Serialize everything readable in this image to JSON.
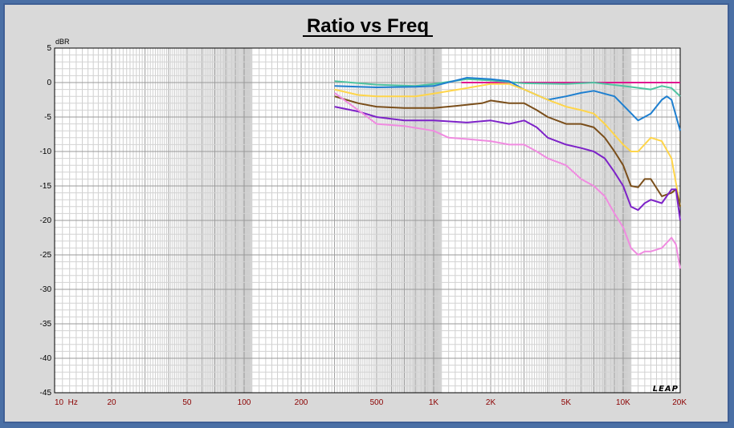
{
  "chart_data": {
    "type": "line",
    "title": "Ratio vs Freq",
    "ylabel": "dBR",
    "brand": "LEAP",
    "x_scale": "log",
    "xlim": [
      10,
      20000
    ],
    "ylim": [
      -45,
      5
    ],
    "grid": true,
    "y_ticks": [
      5,
      0,
      -5,
      -10,
      -15,
      -20,
      -25,
      -30,
      -35,
      -40,
      -45
    ],
    "x_ticks": [
      {
        "value": 10,
        "label": "10  Hz"
      },
      {
        "value": 20,
        "label": "20"
      },
      {
        "value": 50,
        "label": "50"
      },
      {
        "value": 100,
        "label": "100"
      },
      {
        "value": 200,
        "label": "200"
      },
      {
        "value": 500,
        "label": "500"
      },
      {
        "value": 1000,
        "label": "1K"
      },
      {
        "value": 2000,
        "label": "2K"
      },
      {
        "value": 5000,
        "label": "5K"
      },
      {
        "value": 10000,
        "label": "10K"
      },
      {
        "value": 20000,
        "label": "20K"
      }
    ],
    "series": [
      {
        "color": "#e0158f",
        "points": [
          [
            1400,
            0
          ],
          [
            2000,
            0
          ],
          [
            5000,
            0
          ],
          [
            10000,
            0
          ],
          [
            20000,
            0
          ]
        ]
      },
      {
        "color": "#4fc3a1",
        "points": [
          [
            300,
            0.2
          ],
          [
            500,
            -0.3
          ],
          [
            800,
            -0.5
          ],
          [
            1000,
            -0.2
          ],
          [
            1500,
            0.5
          ],
          [
            2000,
            0.3
          ],
          [
            3000,
            -0.1
          ],
          [
            5000,
            -0.2
          ],
          [
            7000,
            0
          ],
          [
            10000,
            -0.5
          ],
          [
            14000,
            -1
          ],
          [
            16000,
            -0.5
          ],
          [
            18000,
            -0.8
          ],
          [
            20000,
            -2
          ]
        ]
      },
      {
        "color": "#1e7fd0",
        "points": [
          [
            300,
            -0.5
          ],
          [
            500,
            -0.7
          ],
          [
            800,
            -0.6
          ],
          [
            1000,
            -0.5
          ],
          [
            1500,
            0.7
          ],
          [
            2000,
            0.5
          ],
          [
            2500,
            0.2
          ],
          [
            3000,
            -1
          ],
          [
            4000,
            -2.5
          ],
          [
            5000,
            -2
          ],
          [
            6000,
            -1.5
          ],
          [
            7000,
            -1.2
          ],
          [
            9000,
            -2
          ],
          [
            12000,
            -5.5
          ],
          [
            14000,
            -4.5
          ],
          [
            16000,
            -2.5
          ],
          [
            17000,
            -2
          ],
          [
            18000,
            -2.5
          ],
          [
            20000,
            -7
          ]
        ]
      },
      {
        "color": "#ffd54a",
        "points": [
          [
            300,
            -1
          ],
          [
            400,
            -1.8
          ],
          [
            500,
            -2
          ],
          [
            800,
            -2
          ],
          [
            1000,
            -1.6
          ],
          [
            1500,
            -0.8
          ],
          [
            2000,
            -0.2
          ],
          [
            2500,
            -0.2
          ],
          [
            3000,
            -1
          ],
          [
            4000,
            -2.5
          ],
          [
            5000,
            -3.5
          ],
          [
            6000,
            -4
          ],
          [
            7000,
            -4.5
          ],
          [
            8000,
            -6
          ],
          [
            10000,
            -9
          ],
          [
            11000,
            -10
          ],
          [
            12000,
            -10
          ],
          [
            14000,
            -8
          ],
          [
            16000,
            -8.5
          ],
          [
            18000,
            -11
          ],
          [
            20000,
            -18
          ]
        ]
      },
      {
        "color": "#7a4e1a",
        "points": [
          [
            300,
            -2
          ],
          [
            400,
            -3
          ],
          [
            500,
            -3.5
          ],
          [
            700,
            -3.7
          ],
          [
            1000,
            -3.7
          ],
          [
            1300,
            -3.4
          ],
          [
            1800,
            -3
          ],
          [
            2000,
            -2.6
          ],
          [
            2500,
            -3
          ],
          [
            3000,
            -3
          ],
          [
            3500,
            -4
          ],
          [
            4000,
            -5
          ],
          [
            5000,
            -6
          ],
          [
            6000,
            -6
          ],
          [
            7000,
            -6.5
          ],
          [
            8000,
            -8
          ],
          [
            9000,
            -10
          ],
          [
            10000,
            -12
          ],
          [
            11000,
            -15
          ],
          [
            12000,
            -15.2
          ],
          [
            13000,
            -14
          ],
          [
            14000,
            -14
          ],
          [
            16000,
            -16.5
          ],
          [
            18000,
            -16
          ],
          [
            19000,
            -15.5
          ],
          [
            20000,
            -18
          ]
        ]
      },
      {
        "color": "#7d22c8",
        "points": [
          [
            300,
            -3.5
          ],
          [
            400,
            -4.2
          ],
          [
            500,
            -5
          ],
          [
            700,
            -5.5
          ],
          [
            1000,
            -5.5
          ],
          [
            1500,
            -5.8
          ],
          [
            2000,
            -5.5
          ],
          [
            2500,
            -6
          ],
          [
            3000,
            -5.5
          ],
          [
            3500,
            -6.5
          ],
          [
            4000,
            -8
          ],
          [
            5000,
            -9
          ],
          [
            6000,
            -9.5
          ],
          [
            7000,
            -10
          ],
          [
            8000,
            -11
          ],
          [
            9000,
            -13
          ],
          [
            10000,
            -15
          ],
          [
            11000,
            -18
          ],
          [
            12000,
            -18.5
          ],
          [
            13000,
            -17.5
          ],
          [
            14000,
            -17
          ],
          [
            16000,
            -17.5
          ],
          [
            18000,
            -15.5
          ],
          [
            19000,
            -15.5
          ],
          [
            20000,
            -20
          ]
        ]
      },
      {
        "color": "#f08be0",
        "points": [
          [
            300,
            -1.5
          ],
          [
            400,
            -4
          ],
          [
            500,
            -6
          ],
          [
            700,
            -6.3
          ],
          [
            1000,
            -7
          ],
          [
            1200,
            -8
          ],
          [
            1500,
            -8.2
          ],
          [
            2000,
            -8.5
          ],
          [
            2500,
            -9
          ],
          [
            3000,
            -9
          ],
          [
            3500,
            -10
          ],
          [
            4000,
            -11
          ],
          [
            5000,
            -12
          ],
          [
            6000,
            -14
          ],
          [
            7000,
            -15
          ],
          [
            8000,
            -16.5
          ],
          [
            9000,
            -19
          ],
          [
            10000,
            -21
          ],
          [
            11000,
            -24
          ],
          [
            12000,
            -25
          ],
          [
            13000,
            -24.5
          ],
          [
            14000,
            -24.5
          ],
          [
            16000,
            -24
          ],
          [
            18000,
            -22.5
          ],
          [
            19000,
            -23.5
          ],
          [
            20000,
            -27
          ]
        ]
      }
    ]
  }
}
